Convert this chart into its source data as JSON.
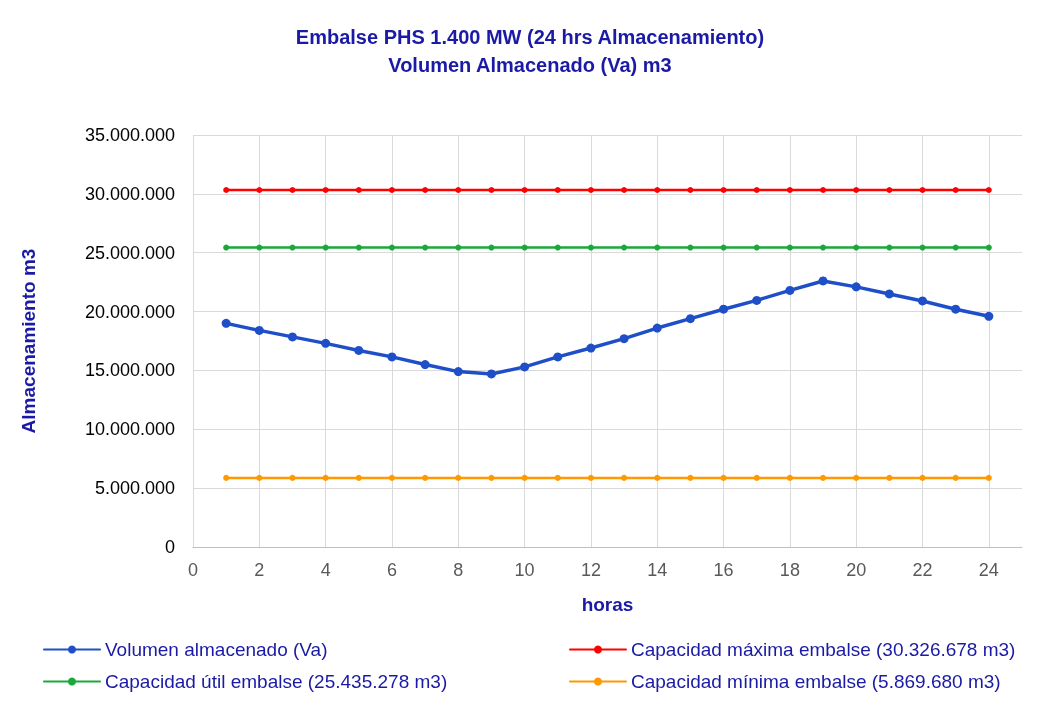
{
  "chart_data": {
    "type": "line",
    "title": "Embalse PHS 1.400 MW (24 hrs Almacenamiento)",
    "subtitle": "Volumen Almacenado (Va) m3",
    "xlabel": "horas",
    "ylabel": "Almacenamiento m3",
    "x": [
      1,
      2,
      3,
      4,
      5,
      6,
      7,
      8,
      9,
      10,
      11,
      12,
      13,
      14,
      15,
      16,
      17,
      18,
      19,
      20,
      21,
      22,
      23,
      24
    ],
    "xlim": [
      0,
      25
    ],
    "xticks": [
      0,
      2,
      4,
      6,
      8,
      10,
      12,
      14,
      16,
      18,
      20,
      22,
      24
    ],
    "ylim": [
      0,
      35000000
    ],
    "yticks": [
      {
        "value": 0,
        "label": "0"
      },
      {
        "value": 5000000,
        "label": "5.000.000"
      },
      {
        "value": 10000000,
        "label": "10.000.000"
      },
      {
        "value": 15000000,
        "label": "15.000.000"
      },
      {
        "value": 20000000,
        "label": "20.000.000"
      },
      {
        "value": 25000000,
        "label": "25.000.000"
      },
      {
        "value": 30000000,
        "label": "30.000.000"
      },
      {
        "value": 35000000,
        "label": "35.000.000"
      }
    ],
    "grid": true,
    "legend": "bottom",
    "marker": "circle",
    "line_style": "solid",
    "series": [
      {
        "name": "Volumen almacenado (Va)",
        "color": "#1f4fc8",
        "values": [
          19000000,
          18400000,
          17850000,
          17300000,
          16700000,
          16150000,
          15500000,
          14900000,
          14700000,
          15300000,
          16150000,
          16900000,
          17700000,
          18600000,
          19400000,
          20200000,
          20950000,
          21800000,
          22600000,
          22100000,
          21500000,
          20900000,
          20200000,
          19600000
        ]
      },
      {
        "name": "Capacidad máxima embalse (30.326.678 m3)",
        "color": "#ff0000",
        "values": [
          30326678,
          30326678,
          30326678,
          30326678,
          30326678,
          30326678,
          30326678,
          30326678,
          30326678,
          30326678,
          30326678,
          30326678,
          30326678,
          30326678,
          30326678,
          30326678,
          30326678,
          30326678,
          30326678,
          30326678,
          30326678,
          30326678,
          30326678,
          30326678
        ]
      },
      {
        "name": "Capacidad útil embalse (25.435.278 m3)",
        "color": "#1aa83a",
        "values": [
          25435278,
          25435278,
          25435278,
          25435278,
          25435278,
          25435278,
          25435278,
          25435278,
          25435278,
          25435278,
          25435278,
          25435278,
          25435278,
          25435278,
          25435278,
          25435278,
          25435278,
          25435278,
          25435278,
          25435278,
          25435278,
          25435278,
          25435278,
          25435278
        ]
      },
      {
        "name": "Capacidad mínima embalse (5.869.680 m3)",
        "color": "#ff9900",
        "values": [
          5869680,
          5869680,
          5869680,
          5869680,
          5869680,
          5869680,
          5869680,
          5869680,
          5869680,
          5869680,
          5869680,
          5869680,
          5869680,
          5869680,
          5869680,
          5869680,
          5869680,
          5869680,
          5869680,
          5869680,
          5869680,
          5869680,
          5869680,
          5869680
        ]
      }
    ]
  }
}
